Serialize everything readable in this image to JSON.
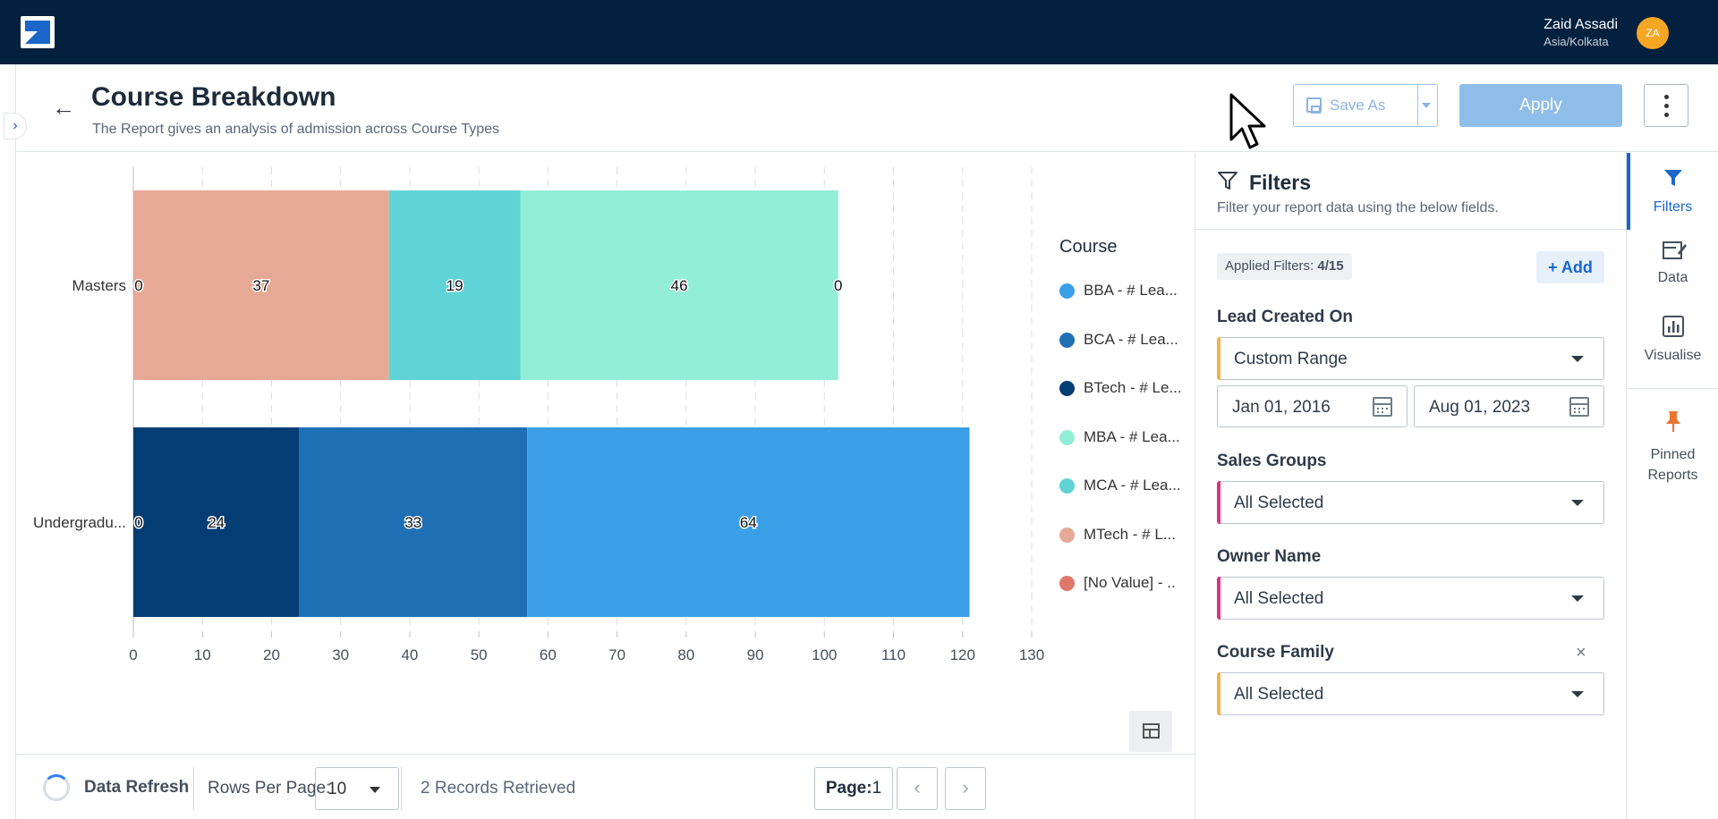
{
  "user": {
    "name": "Zaid Assadi",
    "timezone": "Asia/Kolkata",
    "initials": "ZA"
  },
  "header": {
    "title": "Course Breakdown",
    "subtitle": "The Report gives an analysis of admission across Course Types",
    "save_as_label": "Save As",
    "apply_label": "Apply"
  },
  "legend": {
    "title": "Course",
    "items": [
      {
        "label": "BBA - # Lea...",
        "color": "#3a9fe6"
      },
      {
        "label": "BCA - # Lea...",
        "color": "#1f6fb5"
      },
      {
        "label": "BTech - # Le...",
        "color": "#043d73"
      },
      {
        "label": "MBA - # Lea...",
        "color": "#92eed7"
      },
      {
        "label": "MCA - # Lea...",
        "color": "#60d3d6"
      },
      {
        "label": "MTech - # L...",
        "color": "#e5a995"
      },
      {
        "label": "[No Value] - ..",
        "color": "#e0776a"
      }
    ]
  },
  "chart_data": {
    "type": "bar",
    "orientation": "horizontal",
    "stacked": true,
    "categories": [
      "Masters",
      "Undergradu..."
    ],
    "series": [
      {
        "name": "BBA - # Lea...",
        "color": "#3a9fe6",
        "values": [
          0,
          64
        ]
      },
      {
        "name": "BCA - # Lea...",
        "color": "#1f6fb5",
        "values": [
          0,
          33
        ]
      },
      {
        "name": "BTech - # Le...",
        "color": "#043d73",
        "values": [
          0,
          24
        ]
      },
      {
        "name": "MBA - # Lea...",
        "color": "#92eed7",
        "values": [
          46,
          0
        ]
      },
      {
        "name": "MCA - # Lea...",
        "color": "#60d3d6",
        "values": [
          19,
          0
        ]
      },
      {
        "name": "MTech - # L...",
        "color": "#e5a995",
        "values": [
          37,
          0
        ]
      },
      {
        "name": "[No Value] - ..",
        "color": "#e0776a",
        "values": [
          0,
          0
        ]
      }
    ],
    "xticks": [
      "0",
      "10",
      "20",
      "30",
      "40",
      "50",
      "60",
      "70",
      "80",
      "90",
      "100",
      "110",
      "120",
      "130"
    ],
    "xlim": [
      0,
      130
    ],
    "xgrid": true,
    "legend_position": "right",
    "bars": [
      {
        "category": "Masters",
        "segments": [
          {
            "series": "MTech - # L...",
            "value": 37,
            "color": "#e5a995"
          },
          {
            "series": "MCA - # Lea...",
            "value": 19,
            "color": "#60d3d6"
          },
          {
            "series": "MBA - # Lea...",
            "value": 46,
            "color": "#92eed7"
          }
        ],
        "labels": [
          {
            "text": "0",
            "at": 0
          },
          {
            "text": "37",
            "at": 18.5
          },
          {
            "text": "19",
            "at": 46.5
          },
          {
            "text": "46",
            "at": 79
          },
          {
            "text": "0",
            "at": 102
          }
        ]
      },
      {
        "category": "Undergradu...",
        "segments": [
          {
            "series": "BTech - # Le...",
            "value": 24,
            "color": "#043d73"
          },
          {
            "series": "BCA - # Lea...",
            "value": 33,
            "color": "#1f6fb5"
          },
          {
            "series": "BBA - # Lea...",
            "value": 64,
            "color": "#3a9fe6"
          }
        ],
        "labels": [
          {
            "text": "0",
            "at": 0
          },
          {
            "text": "24",
            "at": 12
          },
          {
            "text": "33",
            "at": 40.5
          },
          {
            "text": "64",
            "at": 89
          }
        ]
      }
    ]
  },
  "footer": {
    "refresh_label": "Data Refresh",
    "rows_per_page_label": "Rows Per Page:",
    "rows_per_page_value": "10",
    "records_text": "2 Records Retrieved",
    "page_label": "Page:",
    "page_number": "1",
    "prev_icon": "‹",
    "next_icon": "›"
  },
  "filters": {
    "title": "Filters",
    "subtitle": "Filter your report data using the below fields.",
    "applied_label": "Applied Filters:",
    "applied_value": "4/15",
    "add_label": "+ Add",
    "lead_created_on": {
      "label": "Lead Created On",
      "value": "Custom Range",
      "from": "Jan 01, 2016",
      "to": "Aug 01, 2023"
    },
    "sales_groups": {
      "label": "Sales Groups",
      "value": "All Selected"
    },
    "owner_name": {
      "label": "Owner Name",
      "value": "All Selected"
    },
    "course_family": {
      "label": "Course Family",
      "value": "All Selected",
      "clear_icon": "×"
    }
  },
  "rail": {
    "items": [
      {
        "label": "Filters",
        "icon": "funnel-icon"
      },
      {
        "label": "Data",
        "icon": "data-edit-icon"
      },
      {
        "label": "Visualise",
        "icon": "bar-chart-icon"
      },
      {
        "label": "Pinned Reports",
        "icon": "pin-icon"
      }
    ]
  },
  "nav": {
    "back_icon": "←",
    "expand_icon": "›"
  },
  "colors": {
    "topbar": "#03203f",
    "accent": "#1a66c9",
    "avatar": "#f5a623",
    "apply_disabled": "#8fbde9",
    "filter_bar_orange": "#f0b44c",
    "filter_bar_pink": "#d63384"
  }
}
